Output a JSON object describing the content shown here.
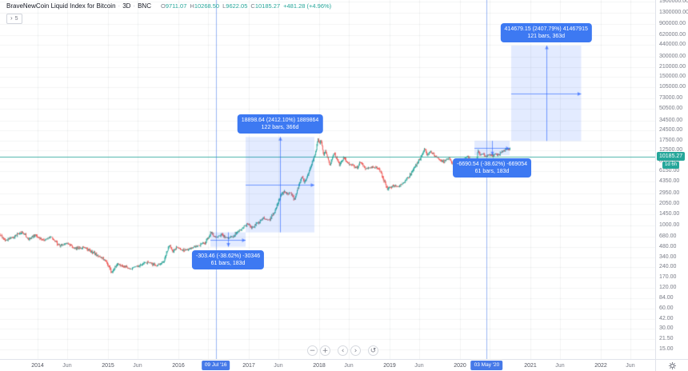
{
  "header": {
    "symbol": "BraveNewCoin Liquid Index for Bitcoin",
    "separator": "·",
    "interval": "3D",
    "exchange": "BNC",
    "ohlc": {
      "open_label": "O",
      "open": "9711.07",
      "high_label": "H",
      "high": "10268.50",
      "low_label": "L",
      "low": "9622.05",
      "close_label": "C",
      "close": "10185.27",
      "change": "+481.28 (+4.96%)"
    },
    "objects_badge": {
      "chevron": "›",
      "count": "5"
    }
  },
  "toolbar": {
    "zoom_out": "−",
    "zoom_in": "+",
    "pan_left": "‹",
    "pan_right": "›",
    "reset": "↺"
  },
  "chart_data": {
    "type": "candlestick",
    "title": "BraveNewCoin Liquid Index for Bitcoin",
    "interval": "3D",
    "exchange": "BNC",
    "price_scale": "log",
    "bar_interval_days": 3,
    "last_price": 10185.27,
    "price_label": "10185.27",
    "countdown": "1d 6h",
    "current_bar": {
      "open": 9711.07,
      "high": 10268.5,
      "low": 9622.05,
      "close": 10185.27,
      "change": 481.28,
      "change_pct": 4.96
    },
    "x_range_years": [
      2013.47,
      2022.77
    ],
    "y_axis_ticks": [
      "1900000.00",
      "1300000.00",
      "900000.00",
      "620000.00",
      "440000.00",
      "300000.00",
      "210000.00",
      "150000.00",
      "105000.00",
      "73000.00",
      "50500.00",
      "34500.00",
      "24500.00",
      "17500.00",
      "12500.00",
      "8700.00",
      "6150.00",
      "4350.00",
      "2950.00",
      "2050.00",
      "1450.00",
      "1000.00",
      "680.00",
      "480.00",
      "340.00",
      "240.00",
      "170.00",
      "120.00",
      "84.00",
      "60.00",
      "42.00",
      "30.00",
      "21.50",
      "15.00"
    ],
    "x_axis_ticks": [
      {
        "label": "2014",
        "year": 2014,
        "major": true
      },
      {
        "label": "Jun",
        "year": 2014.42,
        "major": false
      },
      {
        "label": "2015",
        "year": 2015,
        "major": true
      },
      {
        "label": "Jun",
        "year": 2015.42,
        "major": false
      },
      {
        "label": "2016",
        "year": 2016,
        "major": true
      },
      {
        "label": "2017",
        "year": 2017,
        "major": true
      },
      {
        "label": "Jun",
        "year": 2017.42,
        "major": false
      },
      {
        "label": "2018",
        "year": 2018,
        "major": true
      },
      {
        "label": "Jun",
        "year": 2018.42,
        "major": false
      },
      {
        "label": "2019",
        "year": 2019,
        "major": true
      },
      {
        "label": "Jun",
        "year": 2019.42,
        "major": false
      },
      {
        "label": "2020",
        "year": 2020,
        "major": true
      },
      {
        "label": "2021",
        "year": 2021,
        "major": true
      },
      {
        "label": "Jun",
        "year": 2021.42,
        "major": false
      },
      {
        "label": "2022",
        "year": 2022,
        "major": true
      },
      {
        "label": "Jun",
        "year": 2022.42,
        "major": false
      }
    ],
    "hidden_grid_years": [
      2016.42,
      2020.42
    ],
    "date_markers": [
      {
        "label": "09 Jul '16",
        "year": 2016.53
      },
      {
        "label": "03 May '20",
        "year": 2020.38
      }
    ],
    "measurements": [
      {
        "id": "halving-2016-drop",
        "line1": "-303.46 (-38.62%) -30346",
        "line2": "61 bars, 183d",
        "from_year": 2016.455,
        "to_year": 2016.955,
        "from_price": 785.75,
        "to_price": 482.29,
        "label_side": "below"
      },
      {
        "id": "cycle-2017-rally",
        "line1": "18898.64 (2412.10%) 1889864",
        "line2": "122 bars, 366d",
        "from_year": 2016.955,
        "to_year": 2017.932,
        "from_price": 783.49,
        "to_price": 19682.13,
        "label_side": "above"
      },
      {
        "id": "halving-2020-drop",
        "line1": "-6690.54 (-38.62%) -669054",
        "line2": "61 bars, 183d",
        "from_year": 2020.205,
        "to_year": 2020.705,
        "from_price": 17323.25,
        "to_price": 10632.71,
        "label_side": "below"
      },
      {
        "id": "cycle-2021-projection",
        "line1": "414679.15 (2407.79%) 41467915",
        "line2": "121 bars, 363d",
        "from_year": 2020.727,
        "to_year": 2021.721,
        "from_price": 17222.2,
        "to_price": 431901.35,
        "label_side": "above"
      }
    ],
    "price_path": [
      [
        2013.466,
        733
      ],
      [
        2013.557,
        593
      ],
      [
        2013.67,
        677
      ],
      [
        2013.784,
        815
      ],
      [
        2013.875,
        625
      ],
      [
        2013.977,
        713
      ],
      [
        2014.091,
        593
      ],
      [
        2014.205,
        677
      ],
      [
        2014.318,
        493
      ],
      [
        2014.432,
        548
      ],
      [
        2014.545,
        443
      ],
      [
        2014.659,
        480
      ],
      [
        2014.773,
        399
      ],
      [
        2014.886,
        349
      ],
      [
        2014.977,
        298
      ],
      [
        2015.057,
        201
      ],
      [
        2015.136,
        275
      ],
      [
        2015.227,
        241
      ],
      [
        2015.341,
        229
      ],
      [
        2015.455,
        261
      ],
      [
        2015.568,
        290
      ],
      [
        2015.693,
        254
      ],
      [
        2015.795,
        290
      ],
      [
        2015.875,
        506
      ],
      [
        2015.932,
        410
      ],
      [
        2015.989,
        480
      ],
      [
        2016.08,
        420
      ],
      [
        2016.193,
        467
      ],
      [
        2016.307,
        506
      ],
      [
        2016.398,
        578
      ],
      [
        2016.466,
        793
      ],
      [
        2016.534,
        659
      ],
      [
        2016.625,
        713
      ],
      [
        2016.716,
        642
      ],
      [
        2016.807,
        733
      ],
      [
        2016.898,
        859
      ],
      [
        2016.989,
        1061
      ],
      [
        2017.045,
        906
      ],
      [
        2017.125,
        1061
      ],
      [
        2017.216,
        1277
      ],
      [
        2017.295,
        1180
      ],
      [
        2017.375,
        1578
      ],
      [
        2017.455,
        2678
      ],
      [
        2017.511,
        3223
      ],
      [
        2017.557,
        2751
      ],
      [
        2017.602,
        3056
      ],
      [
        2017.648,
        2347
      ],
      [
        2017.716,
        3681
      ],
      [
        2017.761,
        5330
      ],
      [
        2017.795,
        4203
      ],
      [
        2017.852,
        5769
      ],
      [
        2017.909,
        8139
      ],
      [
        2017.955,
        11477
      ],
      [
        2017.989,
        19467
      ],
      [
        2018.011,
        15330
      ],
      [
        2018.034,
        17487
      ],
      [
        2018.068,
        10602
      ],
      [
        2018.102,
        12432
      ],
      [
        2018.159,
        7506
      ],
      [
        2018.216,
        11477
      ],
      [
        2018.295,
        7506
      ],
      [
        2018.352,
        9786
      ],
      [
        2018.432,
        7928
      ],
      [
        2018.545,
        6762
      ],
      [
        2018.591,
        8581
      ],
      [
        2018.67,
        6762
      ],
      [
        2018.761,
        7129
      ],
      [
        2018.841,
        6945
      ],
      [
        2018.886,
        5925
      ],
      [
        2018.932,
        4313
      ],
      [
        2018.977,
        3399
      ],
      [
        2019.057,
        3881
      ],
      [
        2019.136,
        3681
      ],
      [
        2019.216,
        4203
      ],
      [
        2019.295,
        5473
      ],
      [
        2019.375,
        7506
      ],
      [
        2019.443,
        9534
      ],
      [
        2019.5,
        13095
      ],
      [
        2019.545,
        10602
      ],
      [
        2019.591,
        12099
      ],
      [
        2019.648,
        10317
      ],
      [
        2019.705,
        9534
      ],
      [
        2019.75,
        8361
      ],
      [
        2019.807,
        9057
      ],
      [
        2019.852,
        9534
      ],
      [
        2019.909,
        7707
      ],
      [
        2019.966,
        6945
      ],
      [
        2020.023,
        7707
      ],
      [
        2020.08,
        9534
      ],
      [
        2020.125,
        10317
      ],
      [
        2020.17,
        6762
      ],
      [
        2020.193,
        4792
      ],
      [
        2020.227,
        6585
      ],
      [
        2020.261,
        12432
      ],
      [
        2020.295,
        10602
      ],
      [
        2020.341,
        11175
      ],
      [
        2020.375,
        10050
      ],
      [
        2020.42,
        10884
      ],
      [
        2020.466,
        10317
      ],
      [
        2020.511,
        11175
      ],
      [
        2020.557,
        10602
      ],
      [
        2020.602,
        11790
      ],
      [
        2020.648,
        12750
      ],
      [
        2020.682,
        13455
      ],
      [
        2020.716,
        12432
      ]
    ],
    "colors": {
      "up": "#26a69a",
      "down": "#ef5350"
    }
  },
  "colors": {
    "accent_blue": "#2962ff",
    "measure_fill": "rgba(41,98,255,0.13)",
    "measure_line": "rgba(41,98,255,0.62)",
    "event_line": "rgba(74,125,234,0.55)",
    "grid": "rgba(42,46,57,0.055)",
    "price_line": "rgba(38,166,154,0.85)",
    "axis_text": "#787b86"
  }
}
